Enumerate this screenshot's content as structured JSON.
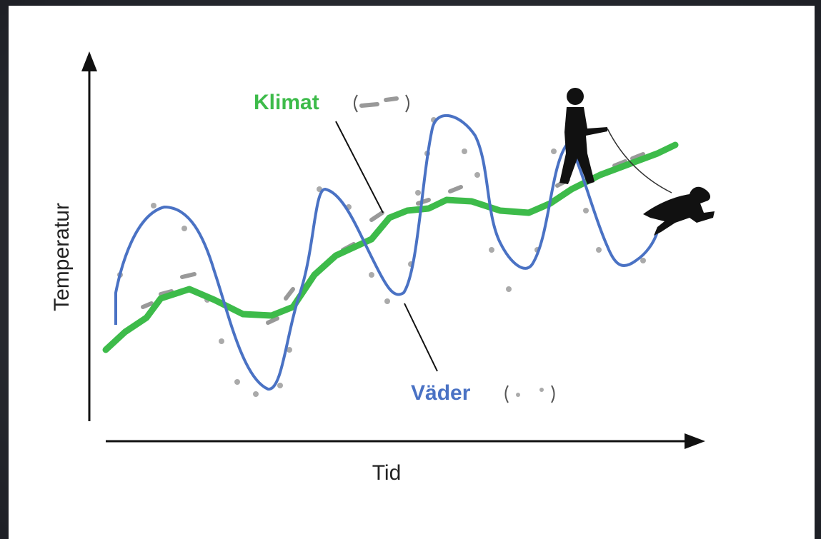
{
  "axes": {
    "y_label": "Temperatur",
    "x_label": "Tid"
  },
  "labels": {
    "climate": "Klimat",
    "weather": "Väder"
  }
}
